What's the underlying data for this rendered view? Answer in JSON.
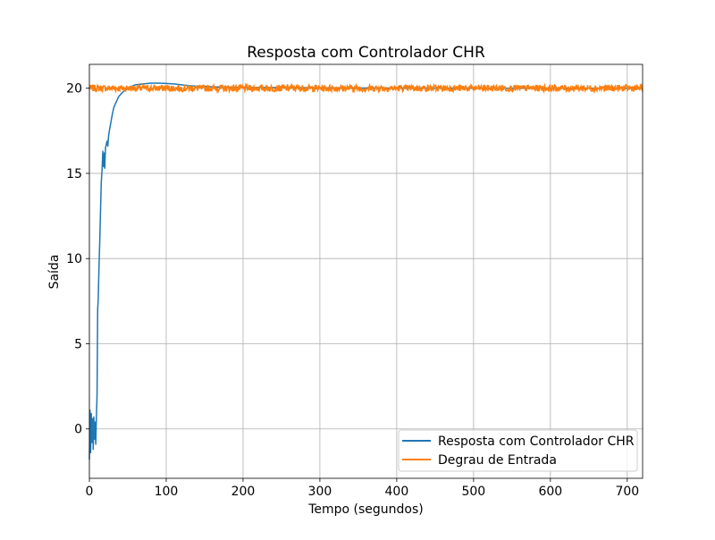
{
  "chart_data": {
    "type": "line",
    "title": "Resposta com Controlador CHR",
    "xlabel": "Tempo (segundos)",
    "ylabel": "Saída",
    "xlim": [
      0,
      720
    ],
    "ylim": [
      -2.9,
      21.4
    ],
    "xticks": [
      0,
      100,
      200,
      300,
      400,
      500,
      600,
      700
    ],
    "yticks": [
      0,
      5,
      10,
      15,
      20
    ],
    "grid": true,
    "legend_position": "lower right",
    "series": [
      {
        "name": "Resposta com Controlador CHR",
        "color": "#1f77b4",
        "x": [
          0,
          0.8,
          1.6,
          2.5,
          3.3,
          4.2,
          5,
          5.8,
          6.7,
          7.5,
          8.3,
          9.2,
          10,
          10.8,
          11.5,
          12.5,
          13.5,
          14.5,
          15.5,
          16.5,
          17.5,
          18.5,
          19.5,
          20,
          21,
          22,
          23,
          24,
          25,
          26,
          28,
          30,
          32,
          34,
          36,
          38,
          40,
          42,
          44,
          46,
          48,
          50,
          55,
          60,
          70,
          80,
          90,
          100,
          110,
          120,
          130,
          140,
          160,
          200,
          300,
          400,
          500,
          600,
          720
        ],
        "y": [
          -1.8,
          1.1,
          -1.4,
          0.9,
          -0.8,
          0.6,
          -1.2,
          0.7,
          -0.6,
          0.4,
          -0.9,
          0.8,
          2.0,
          7.0,
          7.6,
          9.5,
          11.0,
          12.8,
          14.5,
          15.2,
          16.3,
          15.4,
          16.2,
          15.3,
          16.5,
          16.7,
          16.9,
          16.6,
          17.2,
          17.5,
          18.0,
          18.5,
          18.9,
          19.1,
          19.3,
          19.5,
          19.6,
          19.7,
          19.8,
          19.85,
          19.9,
          20.0,
          20.1,
          20.2,
          20.25,
          20.3,
          20.3,
          20.28,
          20.25,
          20.2,
          20.15,
          20.12,
          20.08,
          20.05,
          20.02,
          20.01,
          20.0,
          20.0,
          20.0
        ]
      },
      {
        "name": "Degrau de Entrada",
        "color": "#ff7f0e",
        "y_level": 20.0,
        "noise_amplitude": 0.2
      }
    ]
  }
}
